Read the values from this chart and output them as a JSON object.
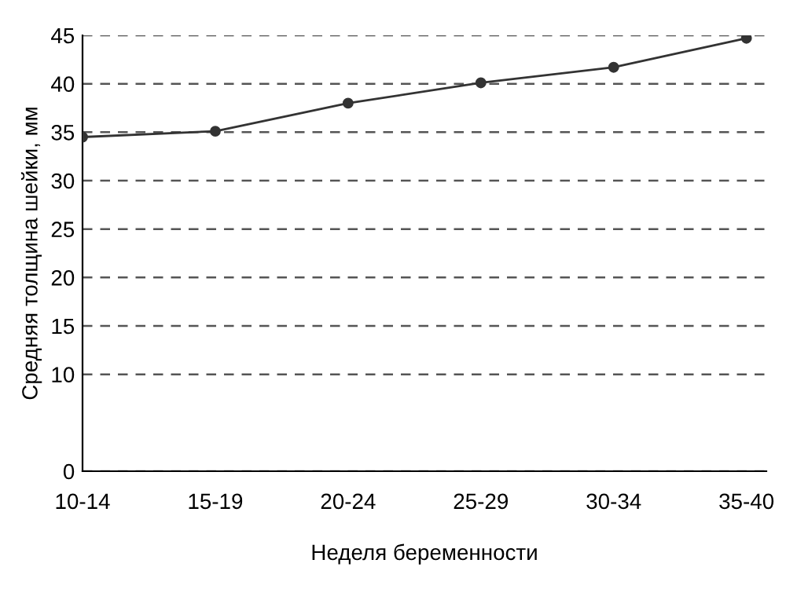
{
  "chart_data": {
    "type": "line",
    "xlabel": "Неделя беременности",
    "ylabel": "Средняя толщина шейки, мм",
    "categories": [
      "10-14",
      "15-19",
      "20-24",
      "25-29",
      "30-34",
      "35-40"
    ],
    "series": [
      {
        "color": "#333333",
        "values": [
          34.5,
          35.1,
          38.0,
          40.1,
          41.7,
          44.7
        ]
      }
    ],
    "ylim": [
      0,
      45
    ],
    "yticks": [
      0,
      10,
      15,
      20,
      25,
      30,
      35,
      40,
      45
    ],
    "grid": "y",
    "marker": "circle",
    "line_style": "solid",
    "legend": false
  }
}
